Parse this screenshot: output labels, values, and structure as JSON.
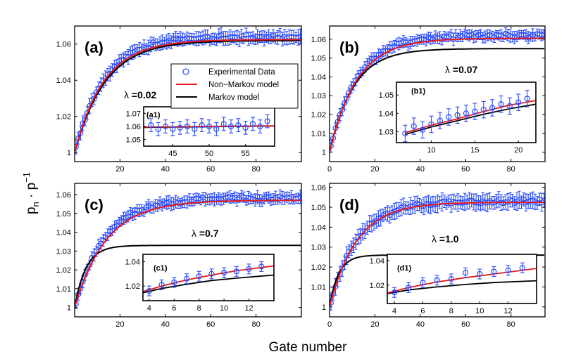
{
  "figure": {
    "xlabel": "Gate number",
    "ylabel_main": "p",
    "ylabel_sub": "n",
    "ylabel_mid": " · p",
    "ylabel_sup": "−1"
  },
  "legend": {
    "entries": [
      {
        "label": "Experimental Data",
        "color": "#2a4bff",
        "marker": "circle"
      },
      {
        "label": "Non−Markov model",
        "color": "#e41a1c",
        "marker": "line"
      },
      {
        "label": "Markov model",
        "color": "#000000",
        "marker": "line"
      }
    ]
  },
  "colors": {
    "data": "#2a4bff",
    "nonmarkov": "#e41a1c",
    "markov": "#000000"
  },
  "chart_data": [
    {
      "type": "scatter",
      "id": "a",
      "label": "(a)",
      "lambda_symbol": "λ",
      "lambda_text": "=0.02",
      "xlim": [
        0,
        100
      ],
      "ylim": [
        0.995,
        1.07
      ],
      "xticks": [
        20,
        40,
        60,
        80
      ],
      "xtick_labels": [
        "20",
        "40",
        "60",
        "80"
      ],
      "yticks": [
        1,
        1.02,
        1.04,
        1.06
      ],
      "ytick_labels": [
        "1",
        "1.02",
        "1.04",
        "1.06"
      ],
      "series": [
        {
          "name": "Experimental Data",
          "model": {
            "asym": 1.064,
            "tau": 13,
            "noise": 0.0022,
            "seed": 3,
            "n": 100,
            "err": 0.0035
          }
        },
        {
          "name": "Non−Markov model",
          "model": {
            "asym": 1.0625,
            "tau": 13
          }
        },
        {
          "name": "Markov model",
          "model": {
            "asym": 1.062,
            "tau": 13.5
          }
        }
      ],
      "inset": {
        "label": "(a1)",
        "xlim": [
          41,
          59
        ],
        "ylim": [
          1.045,
          1.075
        ],
        "xticks": [
          45,
          50,
          55
        ],
        "xtick_labels": [
          "45",
          "50",
          "55"
        ],
        "yticks": [
          1.05,
          1.06,
          1.07
        ],
        "ytick_labels": [
          "1.05",
          "1.06",
          "1.07"
        ],
        "data_x": [
          42,
          43,
          44,
          45,
          46,
          47,
          48,
          49,
          50,
          51,
          52,
          53,
          54,
          55,
          56,
          57,
          58
        ],
        "data_y": [
          1.061,
          1.058,
          1.06,
          1.058,
          1.059,
          1.06,
          1.058,
          1.061,
          1.06,
          1.058,
          1.062,
          1.06,
          1.061,
          1.059,
          1.062,
          1.06,
          1.064
        ],
        "err": 0.005,
        "nonmarkov": [
          [
            41,
            1.0595
          ],
          [
            59,
            1.0605
          ]
        ],
        "markov": [
          [
            41,
            1.0593
          ],
          [
            59,
            1.0603
          ]
        ]
      }
    },
    {
      "type": "scatter",
      "id": "b",
      "label": "(b)",
      "lambda_symbol": "λ",
      "lambda_text": "=0.07",
      "xlim": [
        0,
        95
      ],
      "ylim": [
        0.995,
        1.067
      ],
      "xticks": [
        0,
        20,
        40,
        60,
        80
      ],
      "xtick_labels": [
        "0",
        "20",
        "40",
        "60",
        "80"
      ],
      "yticks": [
        1,
        1.01,
        1.02,
        1.03,
        1.04,
        1.05,
        1.06
      ],
      "ytick_labels": [
        "1",
        "1.01",
        "1.02",
        "1.03",
        "1.04",
        "1.05",
        "1.06"
      ],
      "series": [
        {
          "name": "Experimental Data",
          "model": {
            "asym": 1.062,
            "tau": 12,
            "noise": 0.0018,
            "seed": 7,
            "n": 95,
            "err": 0.0028
          }
        },
        {
          "name": "Non−Markov model",
          "model": {
            "asym": 1.0605,
            "tau": 12
          }
        },
        {
          "name": "Markov model",
          "model": {
            "asym": 1.055,
            "tau": 10.5
          }
        }
      ],
      "inset": {
        "label": "(b1)",
        "xlim": [
          6,
          22
        ],
        "ylim": [
          1.024,
          1.057
        ],
        "xticks": [
          10,
          15,
          20
        ],
        "xtick_labels": [
          "10",
          "15",
          "20"
        ],
        "yticks": [
          1.03,
          1.04,
          1.05
        ],
        "ytick_labels": [
          "1.03",
          "1.04",
          "1.05"
        ],
        "data_x": [
          7,
          8,
          9,
          10,
          11,
          12,
          13,
          14,
          15,
          16,
          17,
          18,
          19,
          20,
          21
        ],
        "data_y": [
          1.029,
          1.033,
          1.031,
          1.034,
          1.036,
          1.038,
          1.039,
          1.04,
          1.041,
          1.042,
          1.043,
          1.045,
          1.044,
          1.046,
          1.048
        ],
        "err": 0.0045,
        "nonmarkov": [
          [
            7,
            1.0295
          ],
          [
            10,
            1.0335
          ],
          [
            13,
            1.037
          ],
          [
            16,
            1.041
          ],
          [
            19,
            1.0445
          ],
          [
            22,
            1.047
          ]
        ],
        "markov": [
          [
            7,
            1.0285
          ],
          [
            10,
            1.0325
          ],
          [
            13,
            1.036
          ],
          [
            16,
            1.0395
          ],
          [
            19,
            1.0425
          ],
          [
            22,
            1.045
          ]
        ]
      }
    },
    {
      "type": "scatter",
      "id": "c",
      "label": "(c)",
      "lambda_symbol": "λ",
      "lambda_text": "=0.7",
      "xlim": [
        0,
        100
      ],
      "ylim": [
        0.995,
        1.066
      ],
      "xticks": [
        20,
        40,
        60,
        80
      ],
      "xtick_labels": [
        "20",
        "40",
        "60",
        "80"
      ],
      "yticks": [
        1,
        1.01,
        1.02,
        1.03,
        1.04,
        1.05,
        1.06
      ],
      "ytick_labels": [
        "1",
        "1.01",
        "1.02",
        "1.03",
        "1.04",
        "1.05",
        "1.06"
      ],
      "series": [
        {
          "name": "Experimental Data",
          "model": {
            "asym": 1.058,
            "tau": 13,
            "noise": 0.0018,
            "seed": 11,
            "n": 100,
            "err": 0.003
          }
        },
        {
          "name": "Non−Markov model",
          "model": {
            "asym": 1.057,
            "tau": 14
          }
        },
        {
          "name": "Markov model",
          "model": {
            "asym": 1.033,
            "tau": 5
          }
        }
      ],
      "inset": {
        "label": "(c1)",
        "xlim": [
          3.5,
          14
        ],
        "ylim": [
          1.008,
          1.046
        ],
        "xticks": [
          4,
          6,
          8,
          10,
          12
        ],
        "xtick_labels": [
          "4",
          "6",
          "8",
          "10",
          "12"
        ],
        "yticks": [
          1.02,
          1.04
        ],
        "ytick_labels": [
          "1.02",
          "1.04"
        ],
        "data_x": [
          4,
          5,
          6,
          7,
          8,
          9,
          10,
          11,
          12,
          13
        ],
        "data_y": [
          1.016,
          1.021,
          1.023,
          1.026,
          1.028,
          1.03,
          1.031,
          1.032,
          1.034,
          1.036
        ],
        "err": 0.004,
        "nonmarkov": [
          [
            3.5,
            1.0155
          ],
          [
            5,
            1.02
          ],
          [
            7,
            1.025
          ],
          [
            9,
            1.029
          ],
          [
            11,
            1.0325
          ],
          [
            14,
            1.0365
          ]
        ],
        "markov": [
          [
            3.5,
            1.0145
          ],
          [
            5,
            1.018
          ],
          [
            7,
            1.0215
          ],
          [
            9,
            1.0245
          ],
          [
            11,
            1.0265
          ],
          [
            14,
            1.029
          ]
        ]
      }
    },
    {
      "type": "scatter",
      "id": "d",
      "label": "(d)",
      "lambda_symbol": "λ",
      "lambda_text": "=1.0",
      "xlim": [
        0,
        95
      ],
      "ylim": [
        0.995,
        1.062
      ],
      "xticks": [
        0,
        20,
        40,
        60,
        80
      ],
      "xtick_labels": [
        "0",
        "20",
        "40",
        "60",
        "80"
      ],
      "yticks": [
        1,
        1.01,
        1.02,
        1.03,
        1.04,
        1.05,
        1.06
      ],
      "ytick_labels": [
        "1",
        "1.01",
        "1.02",
        "1.03",
        "1.04",
        "1.05",
        "1.06"
      ],
      "series": [
        {
          "name": "Experimental Data",
          "model": {
            "asym": 1.053,
            "tau": 12,
            "noise": 0.0018,
            "seed": 19,
            "n": 95,
            "err": 0.0038
          }
        },
        {
          "name": "Non−Markov model",
          "model": {
            "asym": 1.0525,
            "tau": 12
          }
        },
        {
          "name": "Markov model",
          "model": {
            "asym": 1.026,
            "tau": 4
          }
        }
      ],
      "inset": {
        "label": "(d1)",
        "xlim": [
          3.5,
          14
        ],
        "ylim": [
          1.005,
          1.045
        ],
        "xticks": [
          4,
          6,
          8,
          10,
          12
        ],
        "xtick_labels": [
          "4",
          "6",
          "8",
          "10",
          "12"
        ],
        "yticks": [
          1.02,
          1.04
        ],
        "ytick_labels": [
          "1.02",
          "1.04"
        ],
        "data_x": [
          4,
          5,
          6,
          7,
          8,
          9,
          10,
          11,
          12,
          13
        ],
        "data_y": [
          1.014,
          1.018,
          1.022,
          1.024,
          1.025,
          1.03,
          1.029,
          1.031,
          1.032,
          1.034
        ],
        "err": 0.004,
        "nonmarkov": [
          [
            3.5,
            1.0135
          ],
          [
            5,
            1.018
          ],
          [
            7,
            1.0225
          ],
          [
            9,
            1.026
          ],
          [
            11,
            1.029
          ],
          [
            14,
            1.0335
          ]
        ],
        "markov": [
          [
            3.5,
            1.013
          ],
          [
            5,
            1.016
          ],
          [
            7,
            1.0185
          ],
          [
            9,
            1.0205
          ],
          [
            11,
            1.022
          ],
          [
            14,
            1.0235
          ]
        ]
      }
    }
  ]
}
